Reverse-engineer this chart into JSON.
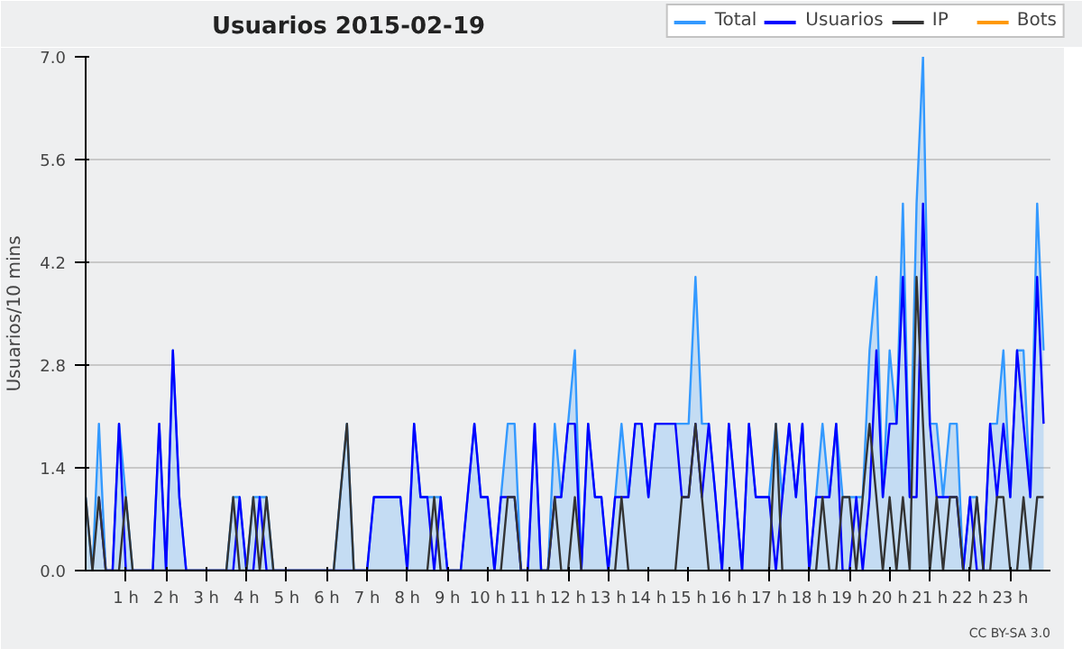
{
  "chart_data": {
    "type": "line",
    "title": "Usuarios  2015-02-19",
    "ylabel": "Usuarios/10 mins",
    "x": [
      0,
      0.17,
      0.33,
      0.5,
      0.67,
      0.83,
      1,
      1.17,
      1.33,
      1.5,
      1.67,
      1.83,
      2,
      2.17,
      2.33,
      2.5,
      2.67,
      2.83,
      3,
      3.17,
      3.33,
      3.5,
      3.67,
      3.83,
      4,
      4.17,
      4.33,
      4.5,
      4.67,
      4.83,
      5,
      5.17,
      5.33,
      5.5,
      5.67,
      5.83,
      6,
      6.17,
      6.33,
      6.5,
      6.67,
      6.83,
      7,
      7.17,
      7.33,
      7.5,
      7.67,
      7.83,
      8,
      8.17,
      8.33,
      8.5,
      8.67,
      8.83,
      9,
      9.17,
      9.33,
      9.5,
      9.67,
      9.83,
      10,
      10.17,
      10.33,
      10.5,
      10.67,
      10.83,
      11,
      11.17,
      11.33,
      11.5,
      11.67,
      11.83,
      12,
      12.17,
      12.33,
      12.5,
      12.67,
      12.83,
      13,
      13.17,
      13.33,
      13.5,
      13.67,
      13.83,
      14,
      14.17,
      14.33,
      14.5,
      14.67,
      14.83,
      15,
      15.17,
      15.33,
      15.5,
      15.67,
      15.83,
      16,
      16.17,
      16.33,
      16.5,
      16.67,
      16.83,
      17,
      17.17,
      17.33,
      17.5,
      17.67,
      17.83,
      18,
      18.17,
      18.33,
      18.5,
      18.67,
      18.83,
      19,
      19.17,
      19.33,
      19.5,
      19.67,
      19.83,
      20,
      20.17,
      20.33,
      20.5,
      20.67,
      20.83,
      21,
      21.17,
      21.33,
      21.5,
      21.67,
      21.83,
      22,
      22.17,
      22.33,
      22.5,
      22.67,
      22.83,
      23,
      23.17,
      23.33,
      23.5,
      23.67,
      23.83
    ],
    "series": [
      {
        "name": "Total",
        "type": "area",
        "color": "#3399ff",
        "values": [
          1,
          0,
          2,
          0,
          0,
          2,
          1,
          0,
          0,
          0,
          0,
          2,
          0,
          3,
          1,
          0,
          0,
          0,
          0,
          0,
          0,
          0,
          1,
          1,
          0,
          1,
          1,
          1,
          0,
          0,
          0,
          0,
          0,
          0,
          0,
          0,
          0,
          0,
          1,
          2,
          0,
          0,
          0,
          1,
          1,
          1,
          1,
          1,
          0,
          2,
          1,
          1,
          1,
          1,
          0,
          0,
          0,
          1,
          2,
          1,
          1,
          0,
          1,
          2,
          2,
          0,
          0,
          2,
          0,
          0,
          2,
          1,
          2,
          3,
          0,
          2,
          1,
          1,
          0,
          1,
          2,
          1,
          2,
          2,
          1,
          2,
          2,
          2,
          2,
          2,
          2,
          4,
          2,
          2,
          1,
          0,
          2,
          1,
          0,
          2,
          1,
          1,
          1,
          2,
          1,
          2,
          1,
          2,
          0,
          1,
          2,
          1,
          2,
          1,
          1,
          1,
          1,
          3,
          4,
          1,
          3,
          2,
          5,
          1,
          5,
          7,
          2,
          2,
          1,
          2,
          2,
          0,
          1,
          1,
          0,
          2,
          2,
          3,
          1,
          3,
          3,
          1,
          5,
          3
        ]
      },
      {
        "name": "Usuarios",
        "color": "#0000ff",
        "values": [
          null,
          null,
          1,
          0,
          0,
          2,
          0,
          0,
          0,
          0,
          0,
          2,
          0,
          3,
          1,
          0,
          0,
          0,
          0,
          0,
          0,
          0,
          0,
          1,
          0,
          0,
          1,
          0,
          0,
          0,
          0,
          0,
          0,
          0,
          0,
          0,
          0,
          0,
          0,
          0,
          0,
          0,
          0,
          1,
          1,
          1,
          1,
          1,
          0,
          2,
          1,
          1,
          0,
          1,
          0,
          0,
          0,
          1,
          2,
          1,
          1,
          0,
          1,
          1,
          1,
          0,
          0,
          2,
          0,
          0,
          1,
          1,
          2,
          2,
          0,
          2,
          1,
          1,
          0,
          1,
          1,
          1,
          2,
          2,
          1,
          2,
          2,
          2,
          2,
          1,
          1,
          2,
          1,
          2,
          1,
          0,
          2,
          1,
          0,
          2,
          1,
          1,
          1,
          0,
          1,
          2,
          1,
          2,
          0,
          1,
          1,
          1,
          2,
          0,
          0,
          1,
          0,
          1,
          3,
          1,
          2,
          2,
          4,
          1,
          1,
          5,
          2,
          1,
          1,
          1,
          1,
          0,
          1,
          0,
          0,
          2,
          1,
          2,
          1,
          3,
          2,
          1,
          4,
          2
        ]
      },
      {
        "name": "IP",
        "color": "#333333",
        "values": [
          1,
          0,
          1,
          0,
          0,
          0,
          1,
          0,
          0,
          0,
          0,
          0,
          0,
          0,
          0,
          0,
          0,
          0,
          0,
          0,
          0,
          0,
          1,
          0,
          0,
          1,
          0,
          1,
          0,
          0,
          0,
          0,
          0,
          0,
          0,
          0,
          0,
          0,
          1,
          2,
          0,
          0,
          0,
          0,
          0,
          0,
          0,
          0,
          0,
          0,
          0,
          0,
          1,
          0,
          0,
          0,
          0,
          0,
          0,
          0,
          0,
          0,
          0,
          1,
          1,
          0,
          0,
          0,
          0,
          0,
          1,
          0,
          0,
          1,
          0,
          0,
          0,
          0,
          0,
          0,
          1,
          0,
          0,
          0,
          0,
          0,
          0,
          0,
          0,
          1,
          1,
          2,
          1,
          0,
          0,
          0,
          0,
          0,
          0,
          0,
          0,
          0,
          0,
          2,
          0,
          0,
          0,
          0,
          0,
          0,
          1,
          0,
          0,
          1,
          1,
          0,
          1,
          2,
          1,
          0,
          1,
          0,
          1,
          0,
          4,
          2,
          0,
          1,
          0,
          1,
          1,
          0,
          0,
          1,
          0,
          0,
          1,
          1,
          0,
          0,
          1,
          0,
          1,
          1
        ]
      },
      {
        "name": "Bots",
        "color": "#ff9900",
        "values": [
          null,
          null,
          null,
          null,
          null,
          null,
          null,
          null,
          null,
          null,
          null,
          null,
          null,
          null,
          null,
          null,
          null,
          null,
          null,
          null,
          null,
          null,
          null,
          null,
          null,
          null,
          null,
          null,
          null,
          null,
          null,
          null,
          null,
          null,
          null,
          null,
          null,
          null,
          null,
          null,
          null,
          null,
          null,
          null,
          null,
          null,
          null,
          null,
          null,
          null,
          null,
          null,
          null,
          null,
          null,
          null,
          null,
          null,
          null,
          null,
          null,
          null,
          null,
          null,
          null,
          null,
          null,
          null,
          null,
          null,
          null,
          null,
          null,
          null,
          null,
          null,
          null,
          null,
          null,
          null,
          null,
          null,
          null,
          null,
          null,
          null,
          null,
          null,
          null,
          null,
          null,
          null,
          null,
          null,
          null,
          null,
          null,
          null,
          null,
          null,
          null,
          null,
          null,
          null,
          null,
          null,
          null,
          null,
          null,
          null,
          null,
          null,
          null,
          null,
          null,
          null,
          null,
          null,
          null,
          null,
          null,
          null,
          null,
          null,
          null,
          null,
          null,
          null,
          null,
          null,
          null,
          null,
          null,
          null,
          null,
          null,
          null,
          null,
          null,
          null,
          null,
          null,
          null,
          null
        ]
      }
    ],
    "xlim": [
      0,
      24
    ],
    "xticks": [
      {
        "value": 1,
        "label": "1 h"
      },
      {
        "value": 2,
        "label": "2 h"
      },
      {
        "value": 3,
        "label": "3 h"
      },
      {
        "value": 4,
        "label": "4 h"
      },
      {
        "value": 5,
        "label": "5 h"
      },
      {
        "value": 6,
        "label": "6 h"
      },
      {
        "value": 7,
        "label": "7 h"
      },
      {
        "value": 8,
        "label": "8 h"
      },
      {
        "value": 9,
        "label": "9 h"
      },
      {
        "value": 10,
        "label": "10 h"
      },
      {
        "value": 11,
        "label": "11 h"
      },
      {
        "value": 12,
        "label": "12 h"
      },
      {
        "value": 13,
        "label": "13 h"
      },
      {
        "value": 14,
        "label": "14 h"
      },
      {
        "value": 15,
        "label": "15 h"
      },
      {
        "value": 16,
        "label": "16 h"
      },
      {
        "value": 17,
        "label": "17 h"
      },
      {
        "value": 18,
        "label": "18 h"
      },
      {
        "value": 19,
        "label": "19 h"
      },
      {
        "value": 20,
        "label": "20 h"
      },
      {
        "value": 21,
        "label": "21 h"
      },
      {
        "value": 22,
        "label": "22 h"
      },
      {
        "value": 23,
        "label": "23 h"
      }
    ],
    "ylim": [
      0,
      7
    ],
    "yticks": [
      {
        "value": 0,
        "label": "0.0"
      },
      1.4,
      2.8,
      4.2,
      5.6,
      {
        "value": 7,
        "label": "7.0"
      }
    ],
    "grid": "y",
    "legend": "top right",
    "annotations": [
      "CC BY-SA 3.0"
    ]
  }
}
